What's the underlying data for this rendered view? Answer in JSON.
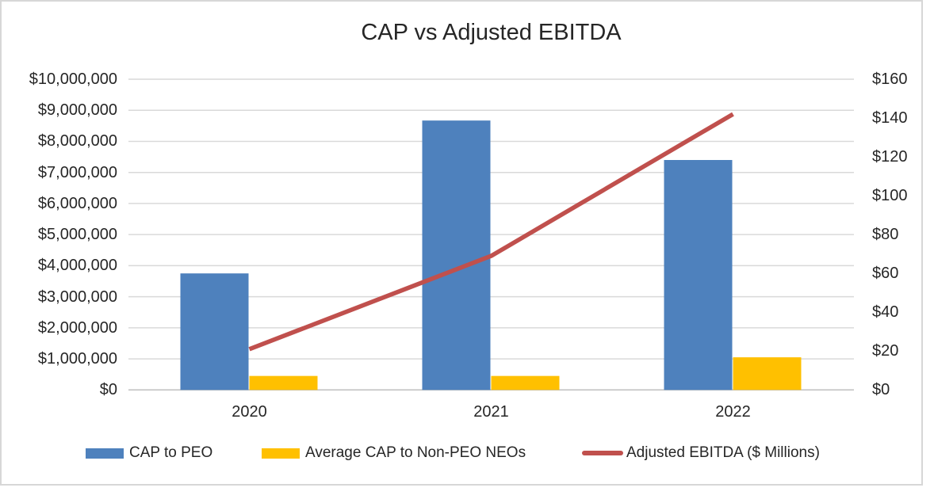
{
  "title": "CAP vs Adjusted EBITDA",
  "chart_data": {
    "type": "combo",
    "title": "CAP vs Adjusted EBITDA",
    "categories": [
      "2020",
      "2021",
      "2022"
    ],
    "series": [
      {
        "name": "CAP to PEO",
        "type": "bar",
        "axis": "left",
        "color": "#4E81BD",
        "values": [
          3750000,
          8670000,
          7400000
        ]
      },
      {
        "name": "Average CAP to Non-PEO NEOs",
        "type": "bar",
        "axis": "left",
        "color": "#FFC000",
        "values": [
          450000,
          450000,
          1050000
        ]
      },
      {
        "name": "Adjusted EBITDA ($ Millions)",
        "type": "line",
        "axis": "right",
        "color": "#C0504D",
        "values": [
          21,
          69,
          142
        ]
      }
    ],
    "axes": {
      "left": {
        "min": 0,
        "max": 10000000,
        "step": 1000000,
        "tick_labels_top_to_bottom": [
          "$10,000,000",
          "$9,000,000",
          "$8,000,000",
          "$7,000,000",
          "$6,000,000",
          "$5,000,000",
          "$4,000,000",
          "$3,000,000",
          "$2,000,000",
          "$1,000,000",
          "$0"
        ]
      },
      "right": {
        "min": 0,
        "max": 160,
        "step": 20,
        "tick_labels_top_to_bottom": [
          "$160",
          "$140",
          "$120",
          "$100",
          "$80",
          "$60",
          "$40",
          "$20",
          "$0"
        ]
      }
    },
    "grid": true,
    "legend_position": "bottom"
  },
  "legend": {
    "items": [
      {
        "label": "CAP to PEO",
        "swatch": "rect",
        "color": "#4E81BD"
      },
      {
        "label": "Average CAP to Non-PEO NEOs",
        "swatch": "rect",
        "color": "#FFC000"
      },
      {
        "label": "Adjusted EBITDA ($ Millions)",
        "swatch": "line",
        "color": "#C0504D"
      }
    ]
  },
  "style": {
    "background": "#FFFFFF",
    "border_color": "#D7D7D7",
    "grid_color": "#D9D9D9",
    "axis_line_color": "#BFBFBF",
    "text_color": "#262626"
  }
}
